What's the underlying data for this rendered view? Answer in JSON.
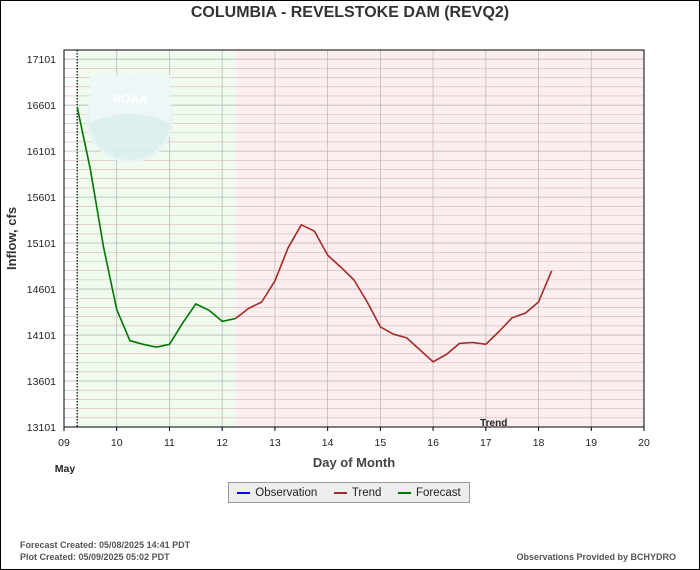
{
  "title": "COLUMBIA - REVELSTOKE DAM  (REVQ2)",
  "footer": {
    "forecast_created": "Forecast Created: 05/08/2025 14:41 PDT",
    "plot_created": "Plot Created: 05/09/2025 05:02 PDT",
    "provider": "Observations Provided by BCHYDRO"
  },
  "legend": [
    {
      "label": "Observation",
      "color": "#0000ff"
    },
    {
      "label": "Trend",
      "color": "#a52a2a"
    },
    {
      "label": "Forecast",
      "color": "#007700"
    }
  ],
  "watermark": "NOAA",
  "colors": {
    "forecast_bg": "#eefbee",
    "trend_bg": "#fceeee",
    "forecast_line": "#007700",
    "trend_line": "#a52a2a",
    "grid": "#bbbbbb"
  },
  "chart_data": {
    "type": "line",
    "title": "COLUMBIA - REVELSTOKE DAM  (REVQ2)",
    "xlabel": "Day of Month",
    "xlabel_month": "May",
    "ylabel": "Inflow, cfs",
    "xlim": [
      9,
      20
    ],
    "ylim": [
      13101,
      17201
    ],
    "x_ticks": [
      9,
      10,
      11,
      12,
      13,
      14,
      15,
      16,
      17,
      18,
      19,
      20
    ],
    "x_tick_labels": [
      "09",
      "10",
      "11",
      "12",
      "13",
      "14",
      "15",
      "16",
      "17",
      "18",
      "19",
      "20"
    ],
    "y_ticks": [
      13101,
      13601,
      14101,
      14601,
      15101,
      15601,
      16101,
      16601,
      17101
    ],
    "y_tick_labels": [
      "13101",
      "13601",
      "14101",
      "14601",
      "15101",
      "15601",
      "16101",
      "16601",
      "17101"
    ],
    "grid": true,
    "regions": [
      {
        "name": "Forecast",
        "start": 9.25,
        "end": 12.25
      },
      {
        "name": "Trend",
        "start": 12.25,
        "end": 20
      }
    ],
    "now_marker_x": 9.25,
    "region_label": "Trend",
    "series": [
      {
        "name": "Forecast",
        "x": [
          9.25,
          9.5,
          9.75,
          10.0,
          10.25,
          10.5,
          10.75,
          11.0,
          11.25,
          11.5,
          11.75,
          12.0,
          12.25
        ],
        "values": [
          16580,
          15900,
          15060,
          14380,
          14040,
          14000,
          13970,
          14000,
          14230,
          14440,
          14370,
          14250,
          14280
        ]
      },
      {
        "name": "Trend",
        "x": [
          12.25,
          12.5,
          12.75,
          13.0,
          13.25,
          13.5,
          13.75,
          14.0,
          14.25,
          14.5,
          14.75,
          15.0,
          15.25,
          15.5,
          15.75,
          16.0,
          16.25,
          16.5,
          16.75,
          17.0,
          17.25,
          17.5,
          17.75,
          18.0,
          18.25
        ],
        "values": [
          14280,
          14390,
          14460,
          14690,
          15050,
          15300,
          15230,
          14970,
          14840,
          14700,
          14460,
          14190,
          14110,
          14070,
          13940,
          13810,
          13890,
          14010,
          14020,
          14000,
          14140,
          14290,
          14340,
          14460,
          14800
        ]
      }
    ]
  }
}
